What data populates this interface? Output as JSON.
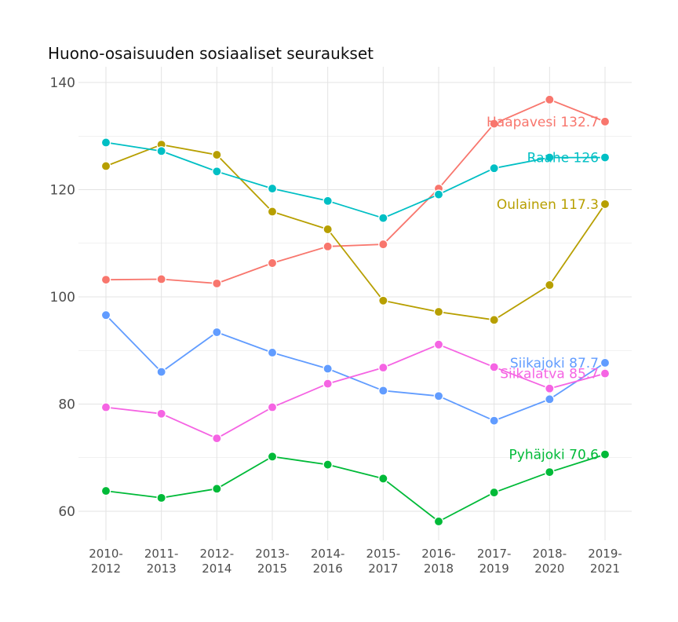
{
  "chart_data": {
    "type": "line",
    "title": "Huono-osaisuuden sosiaaliset seuraukset",
    "xlabel": "",
    "ylabel": "",
    "categories": [
      "2010-2012",
      "2011-2013",
      "2012-2014",
      "2013-2015",
      "2014-2016",
      "2015-2017",
      "2016-2018",
      "2017-2019",
      "2018-2020",
      "2019-2021"
    ],
    "ylim": [
      55,
      140
    ],
    "yticks": [
      60,
      80,
      100,
      120,
      140
    ],
    "grid": true,
    "series": [
      {
        "name": "Haapavesi",
        "color": "#F8766D",
        "end_label": "Haapavesi 132.7",
        "values": [
          103.2,
          103.3,
          102.5,
          106.3,
          109.4,
          109.8,
          120.2,
          132.3,
          136.8,
          132.7
        ]
      },
      {
        "name": "Oulainen",
        "color": "#B79F00",
        "end_label": "Oulainen 117.3",
        "values": [
          124.4,
          128.4,
          126.5,
          115.9,
          112.6,
          99.3,
          97.2,
          95.7,
          102.2,
          117.3
        ]
      },
      {
        "name": "Pyhäjoki",
        "color": "#00BA38",
        "end_label": "Pyhäjoki 70.6",
        "values": [
          63.8,
          62.5,
          64.2,
          70.2,
          68.7,
          66.1,
          58.1,
          63.5,
          67.3,
          70.6
        ]
      },
      {
        "name": "Raahe",
        "color": "#00BFC4",
        "end_label": "Raahe 126",
        "values": [
          128.8,
          127.2,
          123.4,
          120.2,
          117.9,
          114.7,
          119.1,
          124.0,
          126.0,
          126.0
        ]
      },
      {
        "name": "Siikajoki",
        "color": "#619CFF",
        "end_label": "Siikajoki 87.7",
        "values": [
          96.6,
          86.0,
          93.4,
          89.6,
          86.6,
          82.5,
          81.5,
          76.9,
          80.9,
          87.7
        ]
      },
      {
        "name": "Siikalatva",
        "color": "#F564E3",
        "end_label": "Siikalatva 85.7",
        "values": [
          79.4,
          78.2,
          73.6,
          79.4,
          83.8,
          86.8,
          91.1,
          86.9,
          82.9,
          85.7
        ]
      }
    ]
  }
}
